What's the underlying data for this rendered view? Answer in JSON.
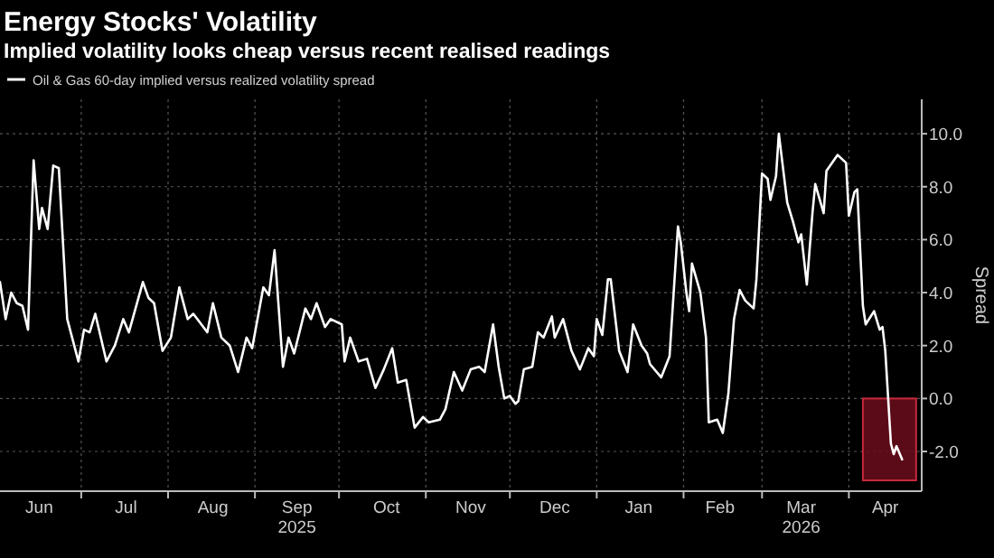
{
  "chart_data": {
    "type": "line",
    "title": "Energy Stocks' Volatility",
    "subtitle": "Implied volatility looks cheap versus recent realised readings",
    "ylabel": "Spread",
    "legend": "top left",
    "grid": true,
    "line_style": "solid",
    "marker": "none",
    "xlim": [
      "2025-06-02",
      "2026-04-27"
    ],
    "xticks": [
      {
        "value": "2025-07-01",
        "label": null
      },
      {
        "value": "2025-08-01",
        "label": null
      },
      {
        "value": "2025-09-01",
        "label": null
      },
      {
        "value": "2025-10-01",
        "label": null
      },
      {
        "value": "2025-11-01",
        "label": null
      },
      {
        "value": "2025-12-01",
        "label": null
      },
      {
        "value": "2026-01-01",
        "label": null
      },
      {
        "value": "2026-02-01",
        "label": null
      },
      {
        "value": "2026-03-01",
        "label": null
      },
      {
        "value": "2026-04-01",
        "label": null
      },
      {
        "value": "2025-06-16",
        "label": "Jun"
      },
      {
        "value": "2025-07-17",
        "label": "Jul"
      },
      {
        "value": "2025-08-17",
        "label": "Aug"
      },
      {
        "value": "2025-09-16",
        "label": "Sep\n2025"
      },
      {
        "value": "2025-10-18",
        "label": "Oct"
      },
      {
        "value": "2025-11-17",
        "label": "Nov"
      },
      {
        "value": "2025-12-17",
        "label": "Dec"
      },
      {
        "value": "2026-01-16",
        "label": "Jan"
      },
      {
        "value": "2026-02-14",
        "label": "Feb"
      },
      {
        "value": "2026-03-15",
        "label": "Mar\n2026"
      },
      {
        "value": "2026-04-14",
        "label": "Apr"
      }
    ],
    "ylim": [
      -3.5,
      11.3
    ],
    "yticks": [
      {
        "value": -2,
        "label": "-2.0"
      },
      {
        "value": 0,
        "label": "0.0"
      },
      {
        "value": 2,
        "label": "2.0"
      },
      {
        "value": 4,
        "label": "4.0"
      },
      {
        "value": 6,
        "label": "6.0"
      },
      {
        "value": 8,
        "label": "8.0"
      },
      {
        "value": 10,
        "label": "10.0"
      }
    ],
    "bands": [
      {
        "axis": "x",
        "from": "2026-04-06",
        "to": "2026-04-25",
        "color": "#6b0d1c"
      }
    ],
    "series": [
      {
        "name": "Oil & Gas 60-day implied versus realized volatility spread",
        "color": "#ffffff",
        "x": [
          "2025-06-02",
          "2025-06-04",
          "2025-06-06",
          "2025-06-08",
          "2025-06-10",
          "2025-06-12",
          "2025-06-14",
          "2025-06-16",
          "2025-06-17",
          "2025-06-19",
          "2025-06-21",
          "2025-06-23",
          "2025-06-26",
          "2025-06-28",
          "2025-06-30",
          "2025-07-02",
          "2025-07-04",
          "2025-07-06",
          "2025-07-10",
          "2025-07-13",
          "2025-07-16",
          "2025-07-18",
          "2025-07-23",
          "2025-07-25",
          "2025-07-27",
          "2025-07-30",
          "2025-08-02",
          "2025-08-05",
          "2025-08-08",
          "2025-08-10",
          "2025-08-15",
          "2025-08-17",
          "2025-08-20",
          "2025-08-23",
          "2025-08-26",
          "2025-08-29",
          "2025-08-31",
          "2025-09-04",
          "2025-09-06",
          "2025-09-08",
          "2025-09-11",
          "2025-09-13",
          "2025-09-15",
          "2025-09-19",
          "2025-09-21",
          "2025-09-23",
          "2025-09-26",
          "2025-09-28",
          "2025-10-02",
          "2025-10-03",
          "2025-10-05",
          "2025-10-08",
          "2025-10-11",
          "2025-10-14",
          "2025-10-17",
          "2025-10-20",
          "2025-10-22",
          "2025-10-25",
          "2025-10-28",
          "2025-10-31",
          "2025-11-02",
          "2025-11-06",
          "2025-11-08",
          "2025-11-11",
          "2025-11-14",
          "2025-11-17",
          "2025-11-20",
          "2025-11-22",
          "2025-11-25",
          "2025-11-27",
          "2025-11-29",
          "2025-12-01",
          "2025-12-03",
          "2025-12-04",
          "2025-12-06",
          "2025-12-09",
          "2025-12-11",
          "2025-12-13",
          "2025-12-16",
          "2025-12-17",
          "2025-12-20",
          "2025-12-23",
          "2025-12-26",
          "2025-12-29",
          "2025-12-31",
          "2026-01-01",
          "2026-01-03",
          "2026-01-05",
          "2026-01-06",
          "2026-01-09",
          "2026-01-12",
          "2026-01-14",
          "2026-01-17",
          "2026-01-19",
          "2026-01-20",
          "2026-01-24",
          "2026-01-27",
          "2026-01-30",
          "2026-01-31",
          "2026-02-02",
          "2026-02-03",
          "2026-02-04",
          "2026-02-07",
          "2026-02-09",
          "2026-02-10",
          "2026-02-13",
          "2026-02-15",
          "2026-02-17",
          "2026-02-19",
          "2026-02-21",
          "2026-02-23",
          "2026-02-26",
          "2026-02-27",
          "2026-03-01",
          "2026-03-03",
          "2026-03-04",
          "2026-03-06",
          "2026-03-07",
          "2026-03-10",
          "2026-03-12",
          "2026-03-14",
          "2026-03-15",
          "2026-03-17",
          "2026-03-19",
          "2026-03-20",
          "2026-03-23",
          "2026-03-24",
          "2026-03-28",
          "2026-03-31",
          "2026-04-01",
          "2026-04-03",
          "2026-04-04",
          "2026-04-06",
          "2026-04-07",
          "2026-04-10",
          "2026-04-12",
          "2026-04-13",
          "2026-04-14",
          "2026-04-16",
          "2026-04-17",
          "2026-04-18",
          "2026-04-20"
        ],
        "values": [
          4.4,
          3.0,
          4.0,
          3.6,
          3.5,
          2.6,
          9.0,
          6.4,
          7.2,
          6.4,
          8.8,
          8.7,
          3.0,
          2.2,
          1.4,
          2.6,
          2.5,
          3.2,
          1.4,
          2.0,
          3.0,
          2.5,
          4.4,
          3.8,
          3.6,
          1.8,
          2.3,
          4.2,
          3.0,
          3.2,
          2.5,
          3.6,
          2.3,
          2.0,
          1.0,
          2.3,
          1.9,
          4.2,
          3.9,
          5.6,
          1.2,
          2.3,
          1.7,
          3.4,
          3.0,
          3.6,
          2.7,
          3.0,
          2.8,
          1.4,
          2.3,
          1.4,
          1.5,
          0.4,
          1.1,
          1.9,
          0.6,
          0.7,
          -1.1,
          -0.7,
          -0.9,
          -0.8,
          -0.4,
          1.0,
          0.3,
          1.1,
          1.2,
          1.0,
          2.8,
          1.2,
          0.0,
          0.1,
          -0.2,
          -0.1,
          1.1,
          1.2,
          2.5,
          2.3,
          3.1,
          2.3,
          3.0,
          1.8,
          1.1,
          1.9,
          1.6,
          3.0,
          2.4,
          4.5,
          4.5,
          1.8,
          1.0,
          2.8,
          2.0,
          1.7,
          1.3,
          0.8,
          1.6,
          6.5,
          5.9,
          4.0,
          3.3,
          5.1,
          4.0,
          2.3,
          -0.9,
          -0.8,
          -1.3,
          0.2,
          3.0,
          4.1,
          3.7,
          3.4,
          4.5,
          8.5,
          8.3,
          7.5,
          8.4,
          10.0,
          7.4,
          6.7,
          5.9,
          6.2,
          4.3,
          7.0,
          8.1,
          7.0,
          8.6,
          9.2,
          8.9,
          6.9,
          7.8,
          7.9,
          3.5,
          2.8,
          3.3,
          2.6,
          2.7,
          1.8,
          -1.7,
          -2.1,
          -1.8,
          -2.3
        ]
      }
    ]
  }
}
